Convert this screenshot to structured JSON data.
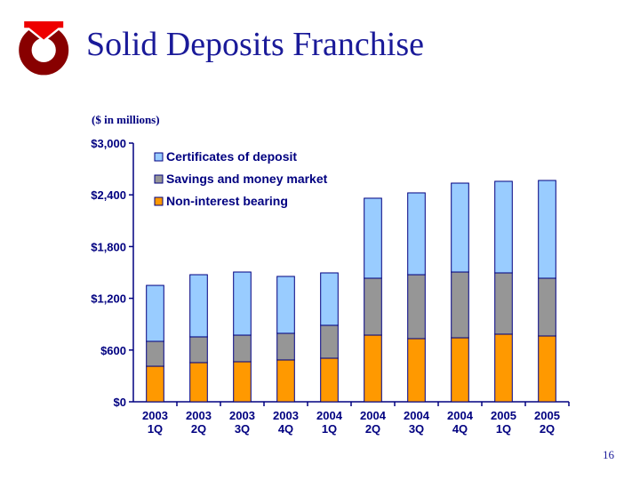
{
  "title": "Solid Deposits Franchise",
  "page_number": "16",
  "colors": {
    "cd": "#99ccff",
    "savings": "#969696",
    "noninterest": "#ff9900",
    "axis": "#000080",
    "logo_red": "#ee0000",
    "logo_dark": "#880000"
  },
  "chart_data": {
    "type": "bar",
    "stacked": true,
    "title": "",
    "ylabel": "($ in millions)",
    "xlabel": "",
    "ylim": [
      0,
      3000
    ],
    "yticks": [
      0,
      600,
      1200,
      1800,
      2400,
      3000
    ],
    "ytick_labels": [
      "$0",
      "$600",
      "$1,200",
      "$1,800",
      "$2,400",
      "$3,000"
    ],
    "categories": [
      [
        "2003",
        "1Q"
      ],
      [
        "2003",
        "2Q"
      ],
      [
        "2003",
        "3Q"
      ],
      [
        "2003",
        "4Q"
      ],
      [
        "2004",
        "1Q"
      ],
      [
        "2004",
        "2Q"
      ],
      [
        "2004",
        "3Q"
      ],
      [
        "2004",
        "4Q"
      ],
      [
        "2005",
        "1Q"
      ],
      [
        "2005",
        "2Q"
      ]
    ],
    "legend_position": "top-left",
    "series": [
      {
        "name": "Non-interest bearing",
        "color": "#ff9900",
        "values": [
          412,
          454,
          464,
          485,
          505,
          773,
          732,
          742,
          784,
          763
        ]
      },
      {
        "name": "Savings and money market",
        "color": "#969696",
        "values": [
          289,
          299,
          309,
          309,
          382,
          660,
          742,
          763,
          711,
          670
        ]
      },
      {
        "name": "Certificates of deposit",
        "color": "#99ccff",
        "values": [
          649,
          721,
          732,
          660,
          608,
          928,
          949,
          1031,
          1062,
          1134
        ]
      }
    ]
  }
}
